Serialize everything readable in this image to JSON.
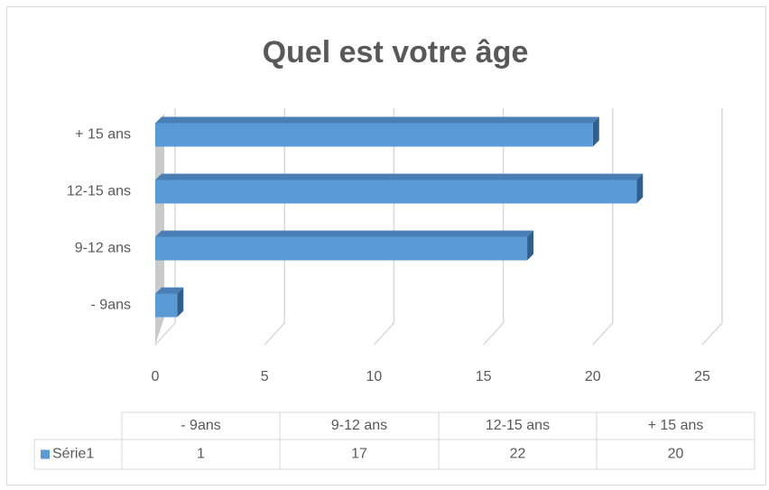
{
  "chart_data": {
    "type": "bar",
    "orientation": "horizontal",
    "title": "Quel est votre âge",
    "categories": [
      "- 9ans",
      "9-12 ans",
      "12-15 ans",
      "+ 15 ans"
    ],
    "series": [
      {
        "name": "Série1",
        "color": "#5b9bd5",
        "values": [
          1,
          17,
          22,
          20
        ]
      }
    ],
    "xlim": [
      0,
      25
    ],
    "xticks": [
      0,
      5,
      10,
      15,
      20,
      25
    ],
    "grid": true,
    "data_table": true
  }
}
